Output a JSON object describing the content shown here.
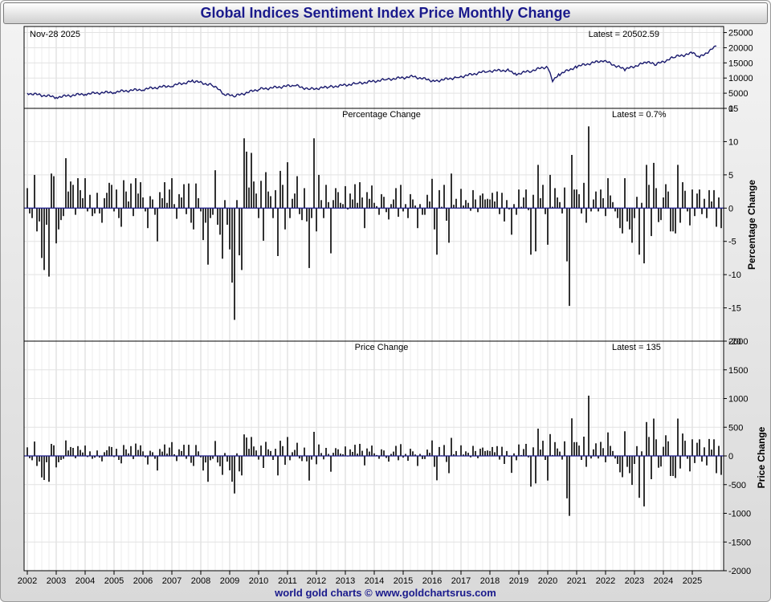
{
  "title": "Global Indices Sentiment Index Price Monthly Change",
  "footer": "world gold charts © www.goldchartsrus.com",
  "colors": {
    "title": "#1a1a8c",
    "line": "#1a1a6e",
    "bar": "#000000",
    "grid": "#e2e2e2"
  },
  "chart_data": [
    {
      "type": "line",
      "date_label": "Nov-28  2025",
      "latest_label": "Latest = 20502.59",
      "ylim": [
        0,
        27000
      ],
      "yticks": [
        0,
        5000,
        10000,
        15000,
        20000,
        25000
      ],
      "x": [
        "2002-01",
        "2003-01",
        "2004-01",
        "2005-01",
        "2006-01",
        "2007-01",
        "2007-10",
        "2008-06",
        "2008-11",
        "2009-03",
        "2010-01",
        "2011-04",
        "2011-10",
        "2012-06",
        "2013-06",
        "2014-06",
        "2015-05",
        "2016-02",
        "2016-12",
        "2017-12",
        "2018-09",
        "2018-12",
        "2019-06",
        "2020-01",
        "2020-03",
        "2020-06",
        "2021-01",
        "2021-12",
        "2022-09",
        "2023-06",
        "2023-10",
        "2024-06",
        "2025-01",
        "2025-04",
        "2025-11"
      ],
      "y": [
        5000,
        3700,
        4800,
        5400,
        6300,
        7500,
        9000,
        7600,
        4600,
        4000,
        6300,
        7600,
        6300,
        7000,
        8200,
        9500,
        10500,
        9000,
        10300,
        12300,
        12600,
        11300,
        12400,
        13800,
        9300,
        11300,
        13800,
        15800,
        12800,
        15200,
        14500,
        17000,
        18200,
        16800,
        20500
      ]
    },
    {
      "type": "bar",
      "subtitle": "Percentage Change",
      "latest_label": "Latest = 0.7%",
      "ylabel": "Percentage Change",
      "ylim": [
        -20,
        15
      ],
      "yticks": [
        -20,
        -15,
        -10,
        -5,
        0,
        5,
        10,
        15
      ],
      "start": "2002-01",
      "values": [
        3.0,
        -0.8,
        -1.5,
        5.0,
        -3.5,
        -2.0,
        -7.5,
        -9.3,
        -2.5,
        -10.3,
        5.2,
        4.8,
        -5.3,
        -3.2,
        -1.8,
        -1.2,
        7.5,
        2.5,
        4.0,
        3.5,
        -1.0,
        4.5,
        2.7,
        1.5,
        4.5,
        -0.5,
        2.0,
        -1.2,
        -0.8,
        2.3,
        -0.8,
        -2.2,
        1.5,
        2.3,
        3.8,
        3.5,
        -0.5,
        2.8,
        -1.5,
        -2.8,
        4.2,
        2.5,
        1.0,
        3.7,
        -1.2,
        4.5,
        2.2,
        3.9,
        1.6,
        -0.5,
        -3.0,
        1.8,
        1.3,
        -1.0,
        -5.0,
        2.4,
        1.5,
        3.9,
        0.8,
        2.8,
        4.5,
        0.6,
        -1.6,
        2.1,
        1.6,
        3.6,
        -0.9,
        3.7,
        -2.2,
        -3.2,
        3.7,
        1.5,
        -0.5,
        -4.8,
        -2.2,
        -8.5,
        -1.5,
        -1.0,
        5.7,
        -2.5,
        -4.0,
        -7.6,
        1.2,
        -2.5,
        -6.2,
        -11.2,
        -16.8,
        1.2,
        -7.1,
        -9.3,
        10.5,
        8.5,
        3.1,
        8.3,
        4.0,
        2.2,
        -1.5,
        4.1,
        -4.9,
        5.4,
        2.5,
        1.8,
        -1.5,
        2.7,
        -7.2,
        5.6,
        3.5,
        -3.2,
        6.9,
        -1.5,
        1.4,
        2.2,
        4.8,
        -0.9,
        -1.8,
        3.0,
        -2.0,
        -9.0,
        -1.5,
        10.5,
        -3.5,
        5.0,
        1.2,
        -1.5,
        3.5,
        0.9,
        -6.8,
        1.2,
        3.0,
        2.4,
        0.8,
        0.6,
        3.3,
        -0.2,
        2.2,
        1.3,
        3.6,
        0.8,
        3.9,
        1.6,
        -3.0,
        2.4,
        1.4,
        3.4,
        0.8,
        0.3,
        -1.0,
        2.1,
        1.7,
        -0.6,
        -1.7,
        0.6,
        1.3,
        3.0,
        -1.3,
        3.5,
        -0.5,
        0.6,
        -1.5,
        2.1,
        1.3,
        0.4,
        -3.0,
        0.6,
        -1.0,
        -1.0,
        2.0,
        1.0,
        4.4,
        -3.2,
        -7.0,
        2.7,
        0.2,
        3.5,
        -1.9,
        -5.2,
        5.2,
        0.5,
        1.4,
        0.1,
        2.9,
        0.4,
        1.2,
        0.8,
        -0.4,
        2.7,
        1.3,
        -0.6,
        1.9,
        2.2,
        1.3,
        1.4,
        1.3,
        2.3,
        1.0,
        2.5,
        -0.9,
        2.3,
        -2.0,
        1.2,
        -0.2,
        -4.0,
        0.6,
        -1.0,
        2.8,
        0.2,
        1.6,
        2.8,
        -0.3,
        -7.0,
        2.0,
        -6.5,
        6.5,
        1.5,
        3.5,
        -0.9,
        -5.5,
        5.0,
        0.2,
        3.0,
        1.6,
        0.9,
        -0.8,
        3.1,
        -8.0,
        -14.7,
        8.0,
        2.8,
        2.8,
        2.1,
        -0.8,
        3.8,
        -2.2,
        12.3,
        -0.5,
        1.3,
        2.5,
        -0.5,
        2.8,
        1.5,
        -1.2,
        4.5,
        1.9,
        0.9,
        -0.5,
        -1.5,
        -3.0,
        -3.8,
        4.5,
        -2.0,
        -3.2,
        -5.2,
        -1.5,
        1.7,
        -7.0,
        0.8,
        -8.3,
        6.5,
        3.5,
        -4.2,
        6.8,
        3.0,
        -2.1,
        -1.8,
        1.6,
        3.6,
        2.5,
        -3.5,
        -3.5,
        -3.8,
        6.5,
        -2.2,
        3.9,
        2.6,
        -0.5,
        -2.6,
        2.8,
        -1.2,
        2.2,
        2.8,
        -0.9,
        1.4,
        -1.5,
        2.7,
        1.0,
        2.7,
        -2.8,
        1.6,
        -3.0,
        4.6,
        2.4,
        1.5,
        2.5,
        1.8,
        0.7
      ]
    },
    {
      "type": "bar",
      "subtitle": "Price Change",
      "latest_label": "Latest = 135",
      "ylabel": "Price Change",
      "ylim": [
        -2000,
        2000
      ],
      "yticks": [
        -2000,
        -1500,
        -1000,
        -500,
        0,
        500,
        1000,
        1500,
        2000
      ],
      "start": "2002-01",
      "values": [
        150,
        -40,
        -75,
        250,
        -175,
        -100,
        -375,
        -420,
        -110,
        -450,
        210,
        185,
        -200,
        -110,
        -70,
        -50,
        270,
        95,
        155,
        140,
        -40,
        170,
        105,
        60,
        180,
        -20,
        80,
        -50,
        -30,
        95,
        -30,
        -95,
        65,
        100,
        165,
        155,
        -20,
        125,
        -70,
        -130,
        190,
        115,
        45,
        170,
        -55,
        215,
        105,
        185,
        80,
        -25,
        -150,
        90,
        65,
        -50,
        -255,
        120,
        75,
        200,
        40,
        145,
        240,
        30,
        -90,
        115,
        85,
        195,
        -50,
        195,
        -120,
        -175,
        190,
        80,
        -25,
        -255,
        -115,
        -450,
        -75,
        -50,
        260,
        -115,
        -180,
        -330,
        50,
        -100,
        -250,
        -450,
        -655,
        45,
        -270,
        -340,
        375,
        320,
        125,
        330,
        165,
        95,
        -65,
        180,
        -210,
        245,
        115,
        85,
        -70,
        125,
        -340,
        265,
        170,
        -155,
        330,
        -75,
        65,
        105,
        230,
        -45,
        -90,
        145,
        -95,
        -430,
        -65,
        420,
        -145,
        200,
        50,
        -60,
        140,
        35,
        -275,
        55,
        135,
        115,
        40,
        30,
        165,
        -10,
        115,
        70,
        195,
        40,
        210,
        90,
        -165,
        130,
        75,
        180,
        45,
        15,
        -50,
        115,
        95,
        -35,
        -100,
        35,
        75,
        175,
        -75,
        205,
        -30,
        35,
        -85,
        125,
        80,
        25,
        -175,
        35,
        -55,
        -55,
        110,
        55,
        270,
        -190,
        -425,
        155,
        10,
        190,
        -105,
        -300,
        315,
        30,
        85,
        5,
        185,
        25,
        80,
        55,
        -25,
        175,
        85,
        -40,
        125,
        145,
        85,
        95,
        85,
        155,
        65,
        170,
        -65,
        160,
        -140,
        85,
        -15,
        -295,
        45,
        -75,
        200,
        15,
        120,
        210,
        -25,
        -535,
        150,
        -480,
        475,
        110,
        265,
        -70,
        -430,
        380,
        15,
        240,
        130,
        75,
        -65,
        255,
        -740,
        -1045,
        655,
        240,
        240,
        180,
        -70,
        335,
        -190,
        1050,
        -45,
        115,
        220,
        -45,
        245,
        135,
        -110,
        410,
        175,
        85,
        -45,
        -140,
        -285,
        -370,
        430,
        -190,
        -300,
        -505,
        -140,
        170,
        -730,
        80,
        -880,
        590,
        330,
        -405,
        650,
        290,
        -205,
        -185,
        160,
        360,
        255,
        -350,
        -350,
        -385,
        650,
        -220,
        390,
        265,
        -50,
        -270,
        290,
        -125,
        230,
        290,
        -100,
        150,
        -165,
        295,
        110,
        290,
        -300,
        175,
        -330,
        500,
        270,
        165,
        280,
        195,
        135
      ]
    }
  ],
  "x_axis": {
    "labels": [
      "2002",
      "2003",
      "2004",
      "2005",
      "2006",
      "2007",
      "2008",
      "2009",
      "2010",
      "2011",
      "2012",
      "2013",
      "2014",
      "2015",
      "2016",
      "2017",
      "2018",
      "2019",
      "2020",
      "2021",
      "2022",
      "2023",
      "2024",
      "2025"
    ]
  }
}
